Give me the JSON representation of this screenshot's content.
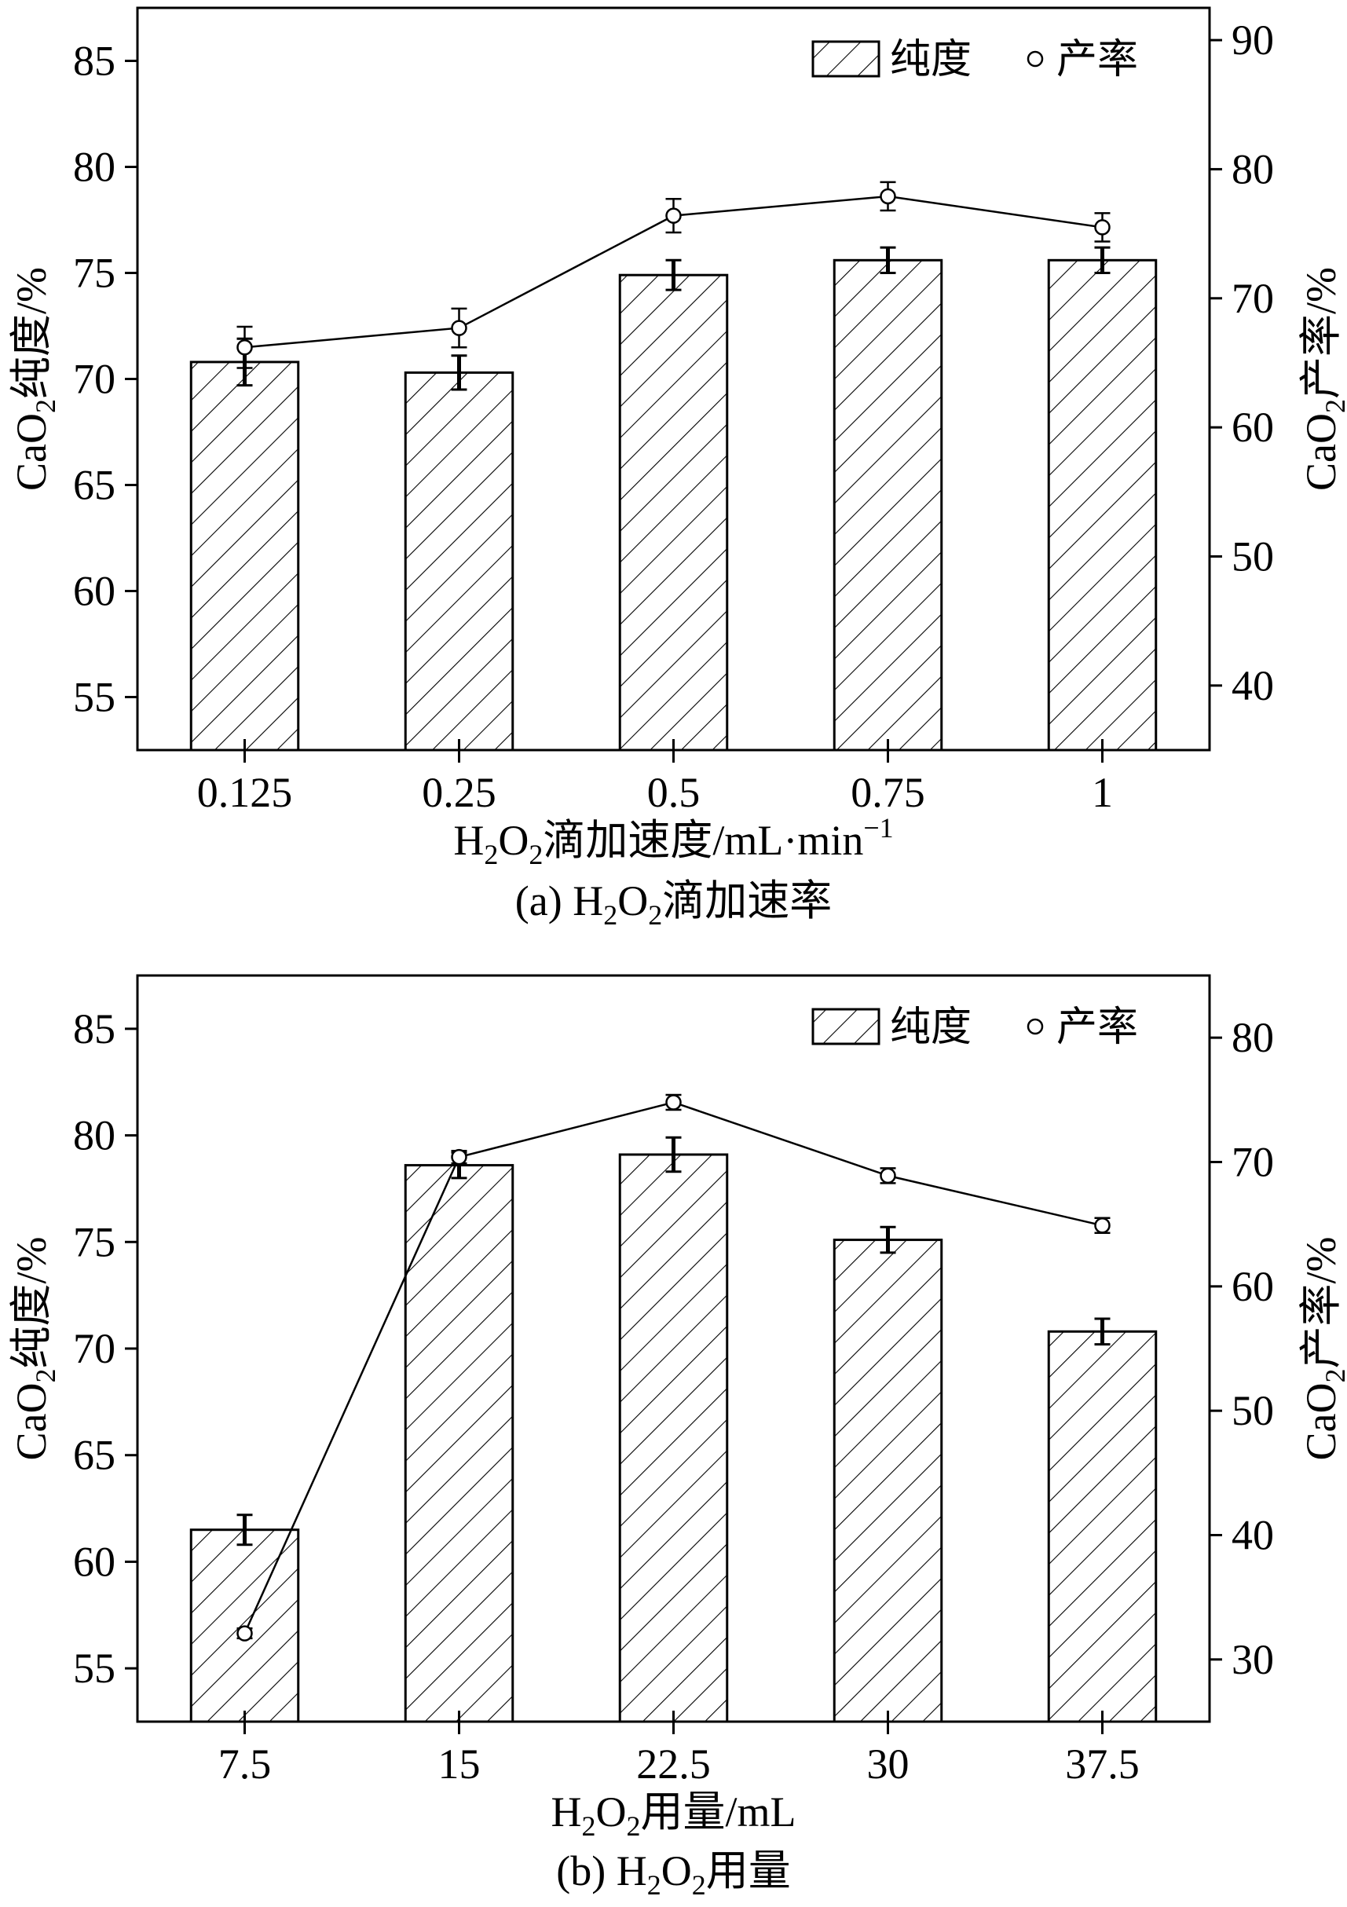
{
  "chart_data": [
    {
      "type": "bar",
      "caption": {
        "pre": "(a) H",
        "sub1": "2",
        "mid": "O",
        "sub2": "2",
        "post": "滴加速率"
      },
      "xlabel": {
        "pre": "H",
        "sub1": "2",
        "mid": "O",
        "sub2": "2",
        "post": "滴加速度/mL·min",
        "sup": "−1"
      },
      "ylabel_left": {
        "pre": "CaO",
        "sub": "2",
        "post": "纯度/%"
      },
      "ylabel_right": {
        "pre": "CaO",
        "sub": "2",
        "post": "产率/%"
      },
      "categories": [
        "0.125",
        "0.25",
        "0.5",
        "0.75",
        "1"
      ],
      "ylim_left": [
        52.5,
        87.5
      ],
      "yticks_left": [
        55,
        60,
        65,
        70,
        75,
        80,
        85
      ],
      "ylim_right": [
        35,
        92.5
      ],
      "yticks_right": [
        40,
        50,
        60,
        70,
        80,
        90
      ],
      "legend_position": "top-right",
      "series": [
        {
          "name": "纯度",
          "kind": "bar",
          "axis": "left",
          "values": [
            70.8,
            70.3,
            74.9,
            75.6,
            75.6
          ],
          "errors": [
            1.1,
            0.8,
            0.7,
            0.6,
            0.6
          ]
        },
        {
          "name": "产率",
          "kind": "line",
          "axis": "right",
          "values": [
            66.2,
            67.7,
            76.4,
            77.9,
            75.5
          ],
          "errors": [
            1.6,
            1.5,
            1.3,
            1.1,
            1.1
          ]
        }
      ]
    },
    {
      "type": "bar",
      "caption": {
        "pre": "(b) H",
        "sub1": "2",
        "mid": "O",
        "sub2": "2",
        "post": "用量"
      },
      "xlabel": {
        "pre": "H",
        "sub1": "2",
        "mid": "O",
        "sub2": "2",
        "post": "用量/mL",
        "sup": ""
      },
      "ylabel_left": {
        "pre": "CaO",
        "sub": "2",
        "post": "纯度/%"
      },
      "ylabel_right": {
        "pre": "CaO",
        "sub": "2",
        "post": "产率/%"
      },
      "categories": [
        "7.5",
        "15",
        "22.5",
        "30",
        "37.5"
      ],
      "ylim_left": [
        52.5,
        87.5
      ],
      "yticks_left": [
        55,
        60,
        65,
        70,
        75,
        80,
        85
      ],
      "ylim_right": [
        25,
        85
      ],
      "yticks_right": [
        30,
        40,
        50,
        60,
        70,
        80
      ],
      "legend_position": "top-right",
      "series": [
        {
          "name": "纯度",
          "kind": "bar",
          "axis": "left",
          "values": [
            61.5,
            78.6,
            79.1,
            75.1,
            70.8
          ],
          "errors": [
            0.7,
            0.6,
            0.8,
            0.6,
            0.6
          ]
        },
        {
          "name": "产率",
          "kind": "line",
          "axis": "right",
          "values": [
            32.1,
            70.4,
            74.8,
            68.9,
            64.9
          ],
          "errors": [
            0.4,
            0.5,
            0.6,
            0.6,
            0.6
          ]
        }
      ]
    }
  ]
}
